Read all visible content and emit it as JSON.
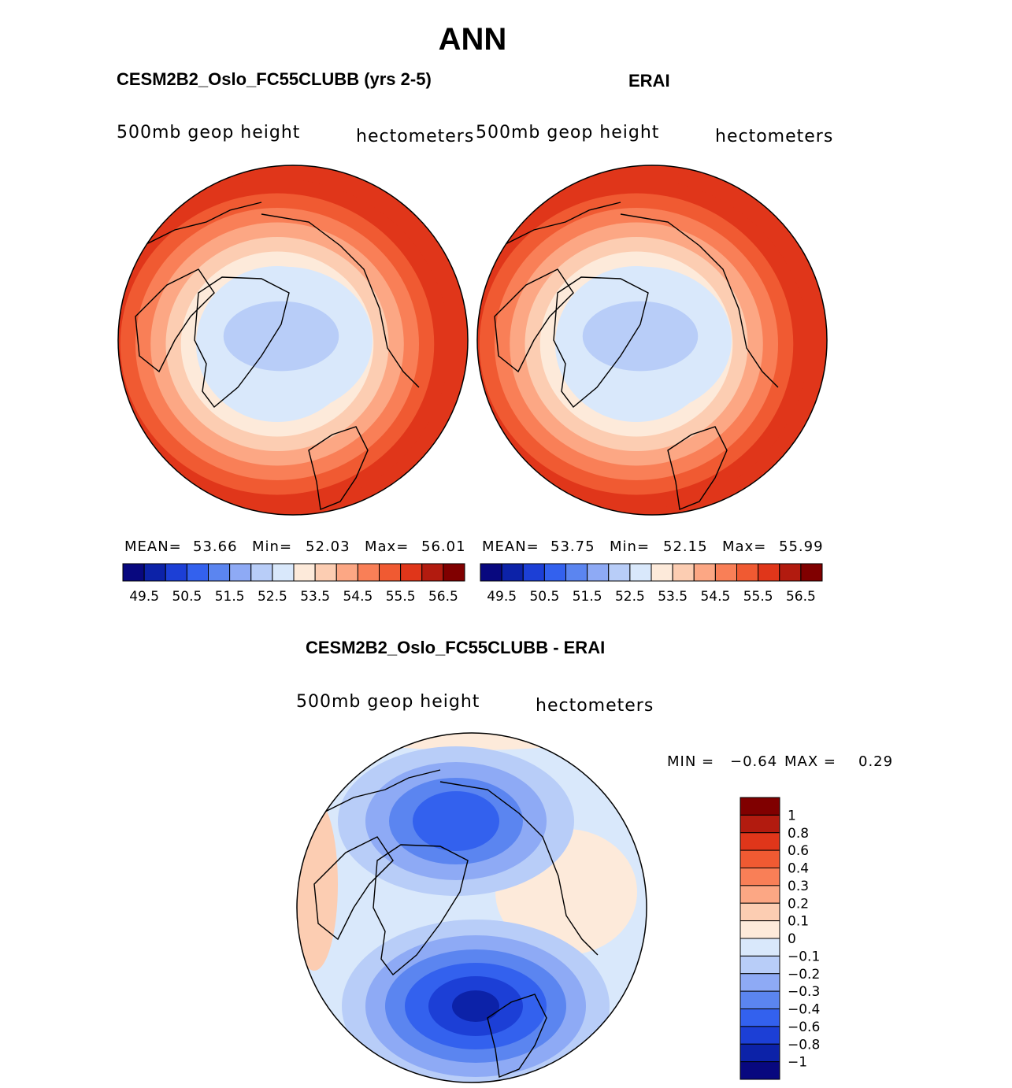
{
  "figure": {
    "title": "ANN"
  },
  "panels": [
    {
      "title": "CESM2B2_Oslo_FC55CLUBB (yrs 2-5)",
      "variable": "500mb geop height",
      "units": "hectometers",
      "mean_label": "MEAN=",
      "mean": "53.66",
      "min_label": "Min=",
      "min": "52.03",
      "max_label": "Max=",
      "max": "56.01",
      "center_level": 6,
      "band_levels": [
        7,
        8,
        9,
        10,
        11,
        12,
        13
      ]
    },
    {
      "title": "ERAI",
      "variable": "500mb geop height",
      "units": "hectometers",
      "mean_label": "MEAN=",
      "mean": "53.75",
      "min_label": "Min=",
      "min": "52.15",
      "max_label": "Max=",
      "max": "55.99",
      "center_level": 6,
      "band_levels": [
        7,
        8,
        9,
        10,
        11,
        12,
        13
      ]
    }
  ],
  "abs_colorbar": {
    "colors": [
      "#08087f",
      "#0c22a8",
      "#1c3fd6",
      "#3361ee",
      "#5b85f0",
      "#8eaaf5",
      "#b8cdf8",
      "#d9e8fb",
      "#fdeada",
      "#fccdb2",
      "#fca784",
      "#f97f57",
      "#f05a32",
      "#e0361a",
      "#b21b0f",
      "#800000"
    ],
    "tick_labels": [
      "49.5",
      "50.5",
      "51.5",
      "52.5",
      "53.5",
      "54.5",
      "55.5",
      "56.5"
    ]
  },
  "difference": {
    "title": "CESM2B2_Oslo_FC55CLUBB - ERAI",
    "variable": "500mb geop height",
    "units": "hectometers",
    "min_label": "MIN =",
    "min": "−0.64",
    "max_label": "MAX =",
    "max": "0.29",
    "colors": [
      "#800000",
      "#b21b0f",
      "#e0361a",
      "#f05a32",
      "#f97f57",
      "#fca784",
      "#fccdb2",
      "#fdeada",
      "#d9e8fb",
      "#b8cdf8",
      "#8eaaf5",
      "#5b85f0",
      "#3361ee",
      "#1c3fd6",
      "#0c22a8",
      "#08087f"
    ],
    "tick_labels": [
      "1",
      "0.8",
      "0.6",
      "0.4",
      "0.3",
      "0.2",
      "0.1",
      "0",
      "−0.1",
      "−0.2",
      "−0.3",
      "−0.4",
      "−0.6",
      "−0.8",
      "−1"
    ]
  },
  "regions": {
    "arctic": "arctic-ocean",
    "greenland": "greenland",
    "scandinavia": "scandinavia"
  }
}
